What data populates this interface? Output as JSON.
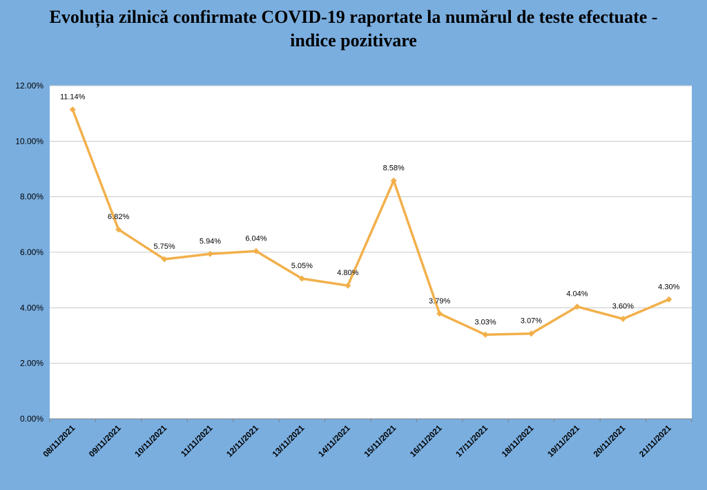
{
  "title_line1": "Evoluția zilnică confirmate COVID-19 raportate la numărul de teste efectuate -",
  "title_line2": "indice pozitivare",
  "colors": {
    "background": "#7aaedf",
    "plot_area": "#ffffff",
    "series_line": "#f2b04b",
    "gridline": "#c8c8c8"
  },
  "chart_data": {
    "type": "line",
    "title": "Evoluția zilnică confirmate COVID-19 raportate la numărul de teste efectuate - indice pozitivare",
    "xlabel": "",
    "ylabel": "",
    "categories": [
      "08/11/2021",
      "09/11/2021",
      "10/11/2021",
      "11/11/2021",
      "12/11/2021",
      "13/11/2021",
      "14/11/2021",
      "15/11/2021",
      "16/11/2021",
      "17/11/2021",
      "18/11/2021",
      "19/11/2021",
      "20/11/2021",
      "21/11/2021"
    ],
    "values": [
      11.14,
      6.82,
      5.75,
      5.94,
      6.04,
      5.05,
      4.8,
      8.58,
      3.79,
      3.03,
      3.07,
      4.04,
      3.6,
      4.3
    ],
    "data_labels": [
      "11.14%",
      "6.82%",
      "5.75%",
      "5.94%",
      "6.04%",
      "5.05%",
      "4.80%",
      "8.58%",
      "3.79%",
      "3.03%",
      "3.07%",
      "4.04%",
      "3.60%",
      "4.30%"
    ],
    "ylim": [
      0,
      12
    ],
    "yticks": [
      "0.00%",
      "2.00%",
      "4.00%",
      "6.00%",
      "8.00%",
      "10.00%",
      "12.00%"
    ],
    "grid": true,
    "legend": "none"
  }
}
